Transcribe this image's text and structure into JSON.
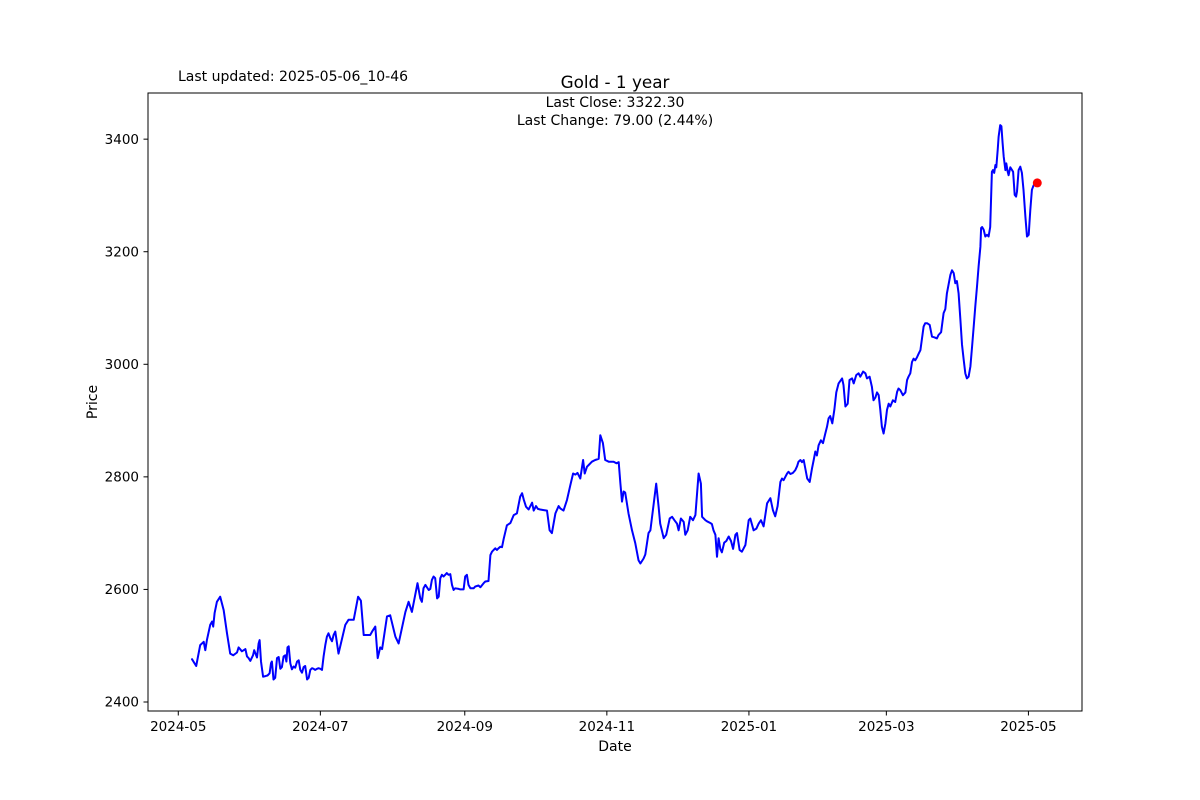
{
  "header": {
    "last_updated": "Last updated: 2025-05-06_10-46",
    "title": "Gold - 1 year"
  },
  "annotations": {
    "last_close": "Last Close: 3322.30",
    "last_change": "Last Change: 79.00 (2.44%)"
  },
  "chart_data": {
    "type": "line",
    "title": "Gold - 1 year",
    "xlabel": "Date",
    "ylabel": "Price",
    "legend": "none",
    "grid": false,
    "line_color": "#0000ff",
    "marker_color": "#ff0000",
    "last_close": 3322.3,
    "last_change": 79.0,
    "last_change_pct": 2.44,
    "x_unit": "days since 2024-05-01",
    "xlim": [
      -13,
      388
    ],
    "ylim": [
      2384,
      3482
    ],
    "y_ticks": [
      2400,
      2600,
      2800,
      3000,
      3200,
      3400
    ],
    "x_ticks": [
      {
        "d": 0,
        "label": "2024-05"
      },
      {
        "d": 61,
        "label": "2024-07"
      },
      {
        "d": 123,
        "label": "2024-09"
      },
      {
        "d": 184,
        "label": "2024-11"
      },
      {
        "d": 245,
        "label": "2025-01"
      },
      {
        "d": 304,
        "label": "2025-03"
      },
      {
        "d": 365,
        "label": "2025-05"
      }
    ],
    "points": [
      [
        5.9,
        2476
      ],
      [
        7.7,
        2464
      ],
      [
        9.4,
        2501
      ],
      [
        10.9,
        2507
      ],
      [
        11.6,
        2492
      ],
      [
        12.3,
        2510
      ],
      [
        13.7,
        2537
      ],
      [
        14.5,
        2543
      ],
      [
        15.0,
        2534
      ],
      [
        15.6,
        2558
      ],
      [
        16.6,
        2578
      ],
      [
        18.0,
        2587
      ],
      [
        19.5,
        2563
      ],
      [
        20.9,
        2522
      ],
      [
        22.3,
        2486
      ],
      [
        23.6,
        2483
      ],
      [
        25.2,
        2488
      ],
      [
        25.9,
        2497
      ],
      [
        27.3,
        2490
      ],
      [
        28.8,
        2494
      ],
      [
        29.5,
        2481
      ],
      [
        30.2,
        2478
      ],
      [
        30.9,
        2473
      ],
      [
        32.1,
        2483
      ],
      [
        32.6,
        2492
      ],
      [
        33.8,
        2479
      ],
      [
        34.5,
        2504
      ],
      [
        34.9,
        2510
      ],
      [
        35.5,
        2472
      ],
      [
        36.4,
        2445
      ],
      [
        37.4,
        2446
      ],
      [
        38.3,
        2447
      ],
      [
        39.2,
        2451
      ],
      [
        39.8,
        2469
      ],
      [
        40.2,
        2472
      ],
      [
        40.9,
        2440
      ],
      [
        41.6,
        2443
      ],
      [
        42.4,
        2478
      ],
      [
        43.1,
        2480
      ],
      [
        43.8,
        2459
      ],
      [
        44.5,
        2462
      ],
      [
        45.2,
        2481
      ],
      [
        45.9,
        2483
      ],
      [
        46.4,
        2472
      ],
      [
        46.9,
        2497
      ],
      [
        47.4,
        2499
      ],
      [
        48.1,
        2469
      ],
      [
        48.8,
        2458
      ],
      [
        49.5,
        2463
      ],
      [
        50.2,
        2461
      ],
      [
        51.0,
        2472
      ],
      [
        51.7,
        2474
      ],
      [
        52.4,
        2457
      ],
      [
        53.1,
        2452
      ],
      [
        53.8,
        2462
      ],
      [
        54.5,
        2464
      ],
      [
        55.3,
        2440
      ],
      [
        56.0,
        2443
      ],
      [
        56.7,
        2457
      ],
      [
        57.4,
        2460
      ],
      [
        58.1,
        2459
      ],
      [
        58.8,
        2457
      ],
      [
        59.6,
        2459
      ],
      [
        60.2,
        2460
      ],
      [
        61.0,
        2459
      ],
      [
        61.7,
        2457
      ],
      [
        62.4,
        2481
      ],
      [
        63.1,
        2501
      ],
      [
        63.8,
        2516
      ],
      [
        64.5,
        2522
      ],
      [
        65.3,
        2513
      ],
      [
        66.0,
        2508
      ],
      [
        66.7,
        2519
      ],
      [
        67.4,
        2525
      ],
      [
        68.8,
        2486
      ],
      [
        71.7,
        2537
      ],
      [
        73.1,
        2546
      ],
      [
        75.3,
        2546
      ],
      [
        77.2,
        2587
      ],
      [
        78.4,
        2580
      ],
      [
        79.6,
        2519
      ],
      [
        82.4,
        2519
      ],
      [
        83.2,
        2525
      ],
      [
        84.6,
        2534
      ],
      [
        85.6,
        2478
      ],
      [
        86.7,
        2497
      ],
      [
        87.5,
        2494
      ],
      [
        89.6,
        2552
      ],
      [
        91.0,
        2554
      ],
      [
        93.2,
        2516
      ],
      [
        94.6,
        2504
      ],
      [
        97.5,
        2560
      ],
      [
        98.9,
        2578
      ],
      [
        100.3,
        2560
      ],
      [
        102.7,
        2611
      ],
      [
        103.9,
        2584
      ],
      [
        104.6,
        2578
      ],
      [
        105.3,
        2602
      ],
      [
        106.1,
        2608
      ],
      [
        107.5,
        2599
      ],
      [
        108.2,
        2601
      ],
      [
        108.9,
        2617
      ],
      [
        109.6,
        2623
      ],
      [
        110.3,
        2620
      ],
      [
        111.1,
        2584
      ],
      [
        111.8,
        2587
      ],
      [
        112.5,
        2620
      ],
      [
        113.2,
        2626
      ],
      [
        113.9,
        2623
      ],
      [
        114.6,
        2626
      ],
      [
        115.3,
        2629
      ],
      [
        116.0,
        2626
      ],
      [
        116.8,
        2627
      ],
      [
        117.5,
        2608
      ],
      [
        118.2,
        2599
      ],
      [
        118.9,
        2602
      ],
      [
        120.4,
        2601
      ],
      [
        121.1,
        2600
      ],
      [
        122.5,
        2600
      ],
      [
        123.2,
        2623
      ],
      [
        123.9,
        2626
      ],
      [
        124.6,
        2608
      ],
      [
        125.4,
        2602
      ],
      [
        126.8,
        2602
      ],
      [
        127.5,
        2605
      ],
      [
        128.9,
        2607
      ],
      [
        129.7,
        2604
      ],
      [
        131.1,
        2611
      ],
      [
        131.8,
        2614
      ],
      [
        133.2,
        2615
      ],
      [
        134.0,
        2661
      ],
      [
        134.7,
        2667
      ],
      [
        135.4,
        2670
      ],
      [
        136.1,
        2673
      ],
      [
        136.8,
        2670
      ],
      [
        137.5,
        2673
      ],
      [
        138.3,
        2676
      ],
      [
        139.0,
        2675
      ],
      [
        139.7,
        2690
      ],
      [
        141.1,
        2714
      ],
      [
        142.6,
        2718
      ],
      [
        144.0,
        2732
      ],
      [
        145.4,
        2735
      ],
      [
        146.8,
        2765
      ],
      [
        147.6,
        2771
      ],
      [
        148.3,
        2760
      ],
      [
        149.3,
        2747
      ],
      [
        150.4,
        2742
      ],
      [
        151.9,
        2754
      ],
      [
        152.6,
        2740
      ],
      [
        153.6,
        2748
      ],
      [
        154.4,
        2743
      ],
      [
        155.4,
        2742
      ],
      [
        156.9,
        2741
      ],
      [
        158.3,
        2740
      ],
      [
        159.4,
        2705
      ],
      [
        160.4,
        2700
      ],
      [
        161.9,
        2735
      ],
      [
        163.3,
        2748
      ],
      [
        164.0,
        2744
      ],
      [
        165.4,
        2740
      ],
      [
        166.9,
        2759
      ],
      [
        168.3,
        2785
      ],
      [
        169.5,
        2806
      ],
      [
        170.5,
        2804
      ],
      [
        171.4,
        2807
      ],
      [
        172.6,
        2797
      ],
      [
        173.8,
        2830
      ],
      [
        174.5,
        2806
      ],
      [
        175.5,
        2818
      ],
      [
        176.2,
        2821
      ],
      [
        177.6,
        2827
      ],
      [
        179.0,
        2830
      ],
      [
        180.5,
        2832
      ],
      [
        181.2,
        2874
      ],
      [
        182.3,
        2860
      ],
      [
        183.3,
        2830
      ],
      [
        184.8,
        2827
      ],
      [
        186.9,
        2827
      ],
      [
        188.1,
        2824
      ],
      [
        189.1,
        2826
      ],
      [
        189.8,
        2788
      ],
      [
        190.5,
        2756
      ],
      [
        191.2,
        2774
      ],
      [
        191.9,
        2772
      ],
      [
        193.3,
        2735
      ],
      [
        194.8,
        2705
      ],
      [
        196.2,
        2682
      ],
      [
        197.6,
        2652
      ],
      [
        198.4,
        2646
      ],
      [
        199.8,
        2655
      ],
      [
        200.5,
        2662
      ],
      [
        201.9,
        2700
      ],
      [
        202.7,
        2705
      ],
      [
        205.2,
        2788
      ],
      [
        206.2,
        2747
      ],
      [
        206.9,
        2717
      ],
      [
        208.4,
        2691
      ],
      [
        209.5,
        2697
      ],
      [
        211.0,
        2726
      ],
      [
        212.0,
        2729
      ],
      [
        213.0,
        2723
      ],
      [
        214.1,
        2717
      ],
      [
        214.8,
        2705
      ],
      [
        215.8,
        2726
      ],
      [
        217.0,
        2720
      ],
      [
        217.7,
        2697
      ],
      [
        218.7,
        2705
      ],
      [
        219.8,
        2729
      ],
      [
        221.0,
        2723
      ],
      [
        222.0,
        2732
      ],
      [
        223.4,
        2806
      ],
      [
        224.4,
        2788
      ],
      [
        224.9,
        2729
      ],
      [
        226.3,
        2723
      ],
      [
        227.0,
        2721
      ],
      [
        228.4,
        2718
      ],
      [
        229.1,
        2716
      ],
      [
        229.8,
        2705
      ],
      [
        230.6,
        2697
      ],
      [
        231.3,
        2658
      ],
      [
        232.0,
        2691
      ],
      [
        232.7,
        2672
      ],
      [
        233.4,
        2666
      ],
      [
        234.4,
        2683
      ],
      [
        235.3,
        2686
      ],
      [
        236.3,
        2694
      ],
      [
        237.3,
        2686
      ],
      [
        238.2,
        2672
      ],
      [
        239.2,
        2697
      ],
      [
        239.9,
        2700
      ],
      [
        241.0,
        2670
      ],
      [
        242.0,
        2667
      ],
      [
        243.5,
        2679
      ],
      [
        244.9,
        2723
      ],
      [
        245.6,
        2726
      ],
      [
        247.0,
        2705
      ],
      [
        248.2,
        2708
      ],
      [
        249.2,
        2717
      ],
      [
        250.2,
        2723
      ],
      [
        251.3,
        2712
      ],
      [
        252.8,
        2753
      ],
      [
        254.2,
        2762
      ],
      [
        255.3,
        2741
      ],
      [
        256.3,
        2730
      ],
      [
        257.3,
        2748
      ],
      [
        258.5,
        2791
      ],
      [
        259.2,
        2797
      ],
      [
        259.9,
        2794
      ],
      [
        261.4,
        2806
      ],
      [
        262.0,
        2809
      ],
      [
        262.8,
        2805
      ],
      [
        263.9,
        2807
      ],
      [
        264.9,
        2812
      ],
      [
        265.7,
        2819
      ],
      [
        266.3,
        2827
      ],
      [
        267.1,
        2830
      ],
      [
        267.8,
        2826
      ],
      [
        268.5,
        2830
      ],
      [
        270.0,
        2797
      ],
      [
        271.1,
        2791
      ],
      [
        272.1,
        2815
      ],
      [
        272.8,
        2830
      ],
      [
        273.5,
        2845
      ],
      [
        274.2,
        2838
      ],
      [
        274.9,
        2856
      ],
      [
        275.9,
        2865
      ],
      [
        276.8,
        2860
      ],
      [
        277.8,
        2877
      ],
      [
        278.5,
        2889
      ],
      [
        279.2,
        2904
      ],
      [
        279.9,
        2908
      ],
      [
        280.8,
        2895
      ],
      [
        281.7,
        2920
      ],
      [
        282.5,
        2950
      ],
      [
        283.5,
        2966
      ],
      [
        285.0,
        2975
      ],
      [
        285.6,
        2963
      ],
      [
        286.4,
        2925
      ],
      [
        287.4,
        2930
      ],
      [
        288.2,
        2972
      ],
      [
        289.3,
        2975
      ],
      [
        290.0,
        2966
      ],
      [
        291.1,
        2981
      ],
      [
        292.1,
        2984
      ],
      [
        292.8,
        2978
      ],
      [
        294.0,
        2987
      ],
      [
        295.0,
        2984
      ],
      [
        295.7,
        2975
      ],
      [
        296.8,
        2978
      ],
      [
        297.8,
        2960
      ],
      [
        298.5,
        2936
      ],
      [
        299.3,
        2941
      ],
      [
        300.0,
        2950
      ],
      [
        300.7,
        2945
      ],
      [
        301.4,
        2919
      ],
      [
        302.1,
        2889
      ],
      [
        302.8,
        2877
      ],
      [
        303.6,
        2895
      ],
      [
        304.3,
        2919
      ],
      [
        305.0,
        2930
      ],
      [
        305.7,
        2925
      ],
      [
        306.8,
        2936
      ],
      [
        307.8,
        2933
      ],
      [
        308.6,
        2951
      ],
      [
        309.2,
        2957
      ],
      [
        310.0,
        2954
      ],
      [
        311.1,
        2945
      ],
      [
        312.2,
        2950
      ],
      [
        312.9,
        2972
      ],
      [
        313.5,
        2978
      ],
      [
        314.3,
        2984
      ],
      [
        315.0,
        3004
      ],
      [
        315.7,
        3010
      ],
      [
        316.4,
        3007
      ],
      [
        317.1,
        3012
      ],
      [
        317.9,
        3019
      ],
      [
        318.6,
        3025
      ],
      [
        320.0,
        3067
      ],
      [
        320.7,
        3073
      ],
      [
        321.5,
        3073
      ],
      [
        322.6,
        3070
      ],
      [
        323.6,
        3049
      ],
      [
        324.6,
        3048
      ],
      [
        325.7,
        3046
      ],
      [
        326.4,
        3052
      ],
      [
        327.5,
        3057
      ],
      [
        328.6,
        3091
      ],
      [
        329.3,
        3098
      ],
      [
        330.0,
        3126
      ],
      [
        330.7,
        3141
      ],
      [
        331.5,
        3159
      ],
      [
        332.2,
        3167
      ],
      [
        332.9,
        3162
      ],
      [
        333.6,
        3144
      ],
      [
        334.3,
        3148
      ],
      [
        335.0,
        3126
      ],
      [
        335.8,
        3079
      ],
      [
        336.5,
        3035
      ],
      [
        337.2,
        3008
      ],
      [
        337.9,
        2984
      ],
      [
        338.6,
        2975
      ],
      [
        339.3,
        2978
      ],
      [
        340.1,
        2996
      ],
      [
        340.8,
        3032
      ],
      [
        341.5,
        3067
      ],
      [
        342.2,
        3103
      ],
      [
        342.9,
        3138
      ],
      [
        343.6,
        3174
      ],
      [
        344.4,
        3209
      ],
      [
        344.7,
        3242
      ],
      [
        345.1,
        3244
      ],
      [
        345.8,
        3239
      ],
      [
        346.5,
        3227
      ],
      [
        347.2,
        3230
      ],
      [
        347.9,
        3227
      ],
      [
        348.6,
        3244
      ],
      [
        349.3,
        3342
      ],
      [
        349.8,
        3345
      ],
      [
        350.3,
        3340
      ],
      [
        350.8,
        3354
      ],
      [
        351.2,
        3350
      ],
      [
        351.8,
        3381
      ],
      [
        352.2,
        3404
      ],
      [
        352.9,
        3425
      ],
      [
        353.4,
        3423
      ],
      [
        353.9,
        3393
      ],
      [
        354.4,
        3369
      ],
      [
        355.1,
        3345
      ],
      [
        355.5,
        3357
      ],
      [
        356.1,
        3342
      ],
      [
        356.5,
        3336
      ],
      [
        357.2,
        3350
      ],
      [
        357.7,
        3347
      ],
      [
        358.4,
        3342
      ],
      [
        359.1,
        3301
      ],
      [
        359.7,
        3298
      ],
      [
        360.1,
        3307
      ],
      [
        360.8,
        3345
      ],
      [
        361.5,
        3351
      ],
      [
        362.2,
        3340
      ],
      [
        362.9,
        3310
      ],
      [
        363.7,
        3262
      ],
      [
        364.4,
        3227
      ],
      [
        365.1,
        3230
      ],
      [
        365.8,
        3274
      ],
      [
        366.5,
        3310
      ],
      [
        367.2,
        3318
      ],
      [
        368.8,
        3322.3
      ]
    ]
  }
}
